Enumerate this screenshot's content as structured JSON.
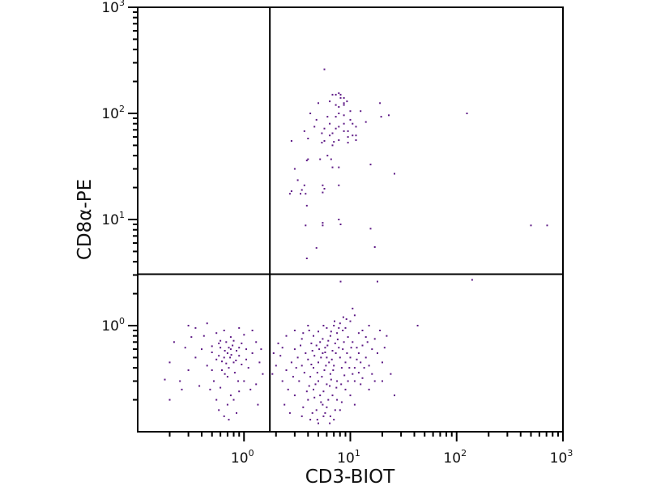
{
  "chart_data": {
    "type": "scatter",
    "title": "",
    "xlabel": "CD3-BIOT",
    "ylabel": "CD8α-PE",
    "xscale": "log",
    "yscale": "log",
    "xlim": [
      0.1,
      1000
    ],
    "ylim": [
      0.1,
      1000
    ],
    "grid": false,
    "point_color": "#5e1a86",
    "quadrant_gates": {
      "x": 1.75,
      "y": 3.05
    },
    "x_ticks": [
      {
        "value": 1,
        "base": "10",
        "exp": "0"
      },
      {
        "value": 10,
        "base": "10",
        "exp": "1"
      },
      {
        "value": 100,
        "base": "10",
        "exp": "2"
      },
      {
        "value": 1000,
        "base": "10",
        "exp": "3"
      }
    ],
    "y_ticks": [
      {
        "value": 1,
        "base": "10",
        "exp": "0"
      },
      {
        "value": 10,
        "base": "10",
        "exp": "1"
      },
      {
        "value": 100,
        "base": "10",
        "exp": "2"
      },
      {
        "value": 1000,
        "base": "10",
        "exp": "3"
      }
    ],
    "points": [
      [
        5.7,
        260
      ],
      [
        6.8,
        150
      ],
      [
        7.3,
        150
      ],
      [
        7.8,
        155
      ],
      [
        8.1,
        150
      ],
      [
        8.1,
        140
      ],
      [
        8.7,
        140
      ],
      [
        9.3,
        130
      ],
      [
        6.4,
        130
      ],
      [
        8.7,
        125
      ],
      [
        5.0,
        125
      ],
      [
        7.3,
        120
      ],
      [
        7.8,
        115
      ],
      [
        8.7,
        120
      ],
      [
        19,
        125
      ],
      [
        4.2,
        100
      ],
      [
        10,
        105
      ],
      [
        12.5,
        105
      ],
      [
        7.8,
        100
      ],
      [
        6.1,
        93
      ],
      [
        7.3,
        93
      ],
      [
        8.7,
        96
      ],
      [
        10,
        87
      ],
      [
        4.8,
        87
      ],
      [
        19.5,
        93
      ],
      [
        23,
        96
      ],
      [
        14,
        83
      ],
      [
        6.4,
        80
      ],
      [
        8.7,
        80
      ],
      [
        10.5,
        80
      ],
      [
        4.6,
        75
      ],
      [
        5.7,
        72
      ],
      [
        7.3,
        72
      ],
      [
        7.8,
        75
      ],
      [
        8.7,
        68
      ],
      [
        9.5,
        68
      ],
      [
        11.3,
        75
      ],
      [
        3.7,
        68
      ],
      [
        5.4,
        65
      ],
      [
        6.8,
        65
      ],
      [
        6.4,
        62
      ],
      [
        10.5,
        62
      ],
      [
        11.3,
        62
      ],
      [
        4.0,
        58
      ],
      [
        9.5,
        60
      ],
      [
        7.8,
        56
      ],
      [
        11.3,
        56
      ],
      [
        2.8,
        55
      ],
      [
        5.7,
        55
      ],
      [
        5.4,
        53
      ],
      [
        7.0,
        54
      ],
      [
        9.5,
        53
      ],
      [
        6.8,
        50
      ],
      [
        6.1,
        40
      ],
      [
        4.0,
        37
      ],
      [
        3.9,
        36
      ],
      [
        5.2,
        37
      ],
      [
        6.6,
        37
      ],
      [
        15.5,
        33
      ],
      [
        6.8,
        31
      ],
      [
        7.8,
        31
      ],
      [
        3.0,
        30
      ],
      [
        26,
        27
      ],
      [
        3.2,
        23.5
      ],
      [
        3.7,
        21
      ],
      [
        5.5,
        21
      ],
      [
        7.8,
        21
      ],
      [
        5.7,
        19.5
      ],
      [
        3.5,
        19
      ],
      [
        2.8,
        18.5
      ],
      [
        2.7,
        17.5
      ],
      [
        3.4,
        17.5
      ],
      [
        3.8,
        17.5
      ],
      [
        5.5,
        18
      ],
      [
        3.9,
        13.5
      ],
      [
        7.8,
        10
      ],
      [
        3.8,
        8.8
      ],
      [
        5.5,
        9.3
      ],
      [
        5.5,
        8.8
      ],
      [
        8.1,
        9.0
      ],
      [
        15.5,
        8.2
      ],
      [
        4.8,
        5.4
      ],
      [
        17,
        5.5
      ],
      [
        3.9,
        4.3
      ],
      [
        125,
        100
      ],
      [
        500,
        8.8
      ],
      [
        710,
        8.8
      ],
      [
        8.1,
        2.6
      ],
      [
        18,
        2.6
      ],
      [
        140,
        2.7
      ],
      [
        0.7,
        0.55
      ],
      [
        0.75,
        0.6
      ],
      [
        0.65,
        0.5
      ],
      [
        0.8,
        0.45
      ],
      [
        0.6,
        0.62
      ],
      [
        0.72,
        0.4
      ],
      [
        0.85,
        0.58
      ],
      [
        0.68,
        0.7
      ],
      [
        0.55,
        0.48
      ],
      [
        0.9,
        0.52
      ],
      [
        0.78,
        0.65
      ],
      [
        0.62,
        0.38
      ],
      [
        0.7,
        0.33
      ],
      [
        0.95,
        0.43
      ],
      [
        0.5,
        0.56
      ],
      [
        0.58,
        0.68
      ],
      [
        0.82,
        0.36
      ],
      [
        0.74,
        0.5
      ],
      [
        0.66,
        0.58
      ],
      [
        1.05,
        0.6
      ],
      [
        0.45,
        0.42
      ],
      [
        0.4,
        0.6
      ],
      [
        0.52,
        0.3
      ],
      [
        0.88,
        0.3
      ],
      [
        1.1,
        0.4
      ],
      [
        1.2,
        0.55
      ],
      [
        0.35,
        0.5
      ],
      [
        0.3,
        0.38
      ],
      [
        0.28,
        0.62
      ],
      [
        0.6,
        0.26
      ],
      [
        0.75,
        0.22
      ],
      [
        0.7,
        0.18
      ],
      [
        0.8,
        0.2
      ],
      [
        0.85,
        0.15
      ],
      [
        0.65,
        0.14
      ],
      [
        0.9,
        0.24
      ],
      [
        0.55,
        0.2
      ],
      [
        0.48,
        0.25
      ],
      [
        0.38,
        0.27
      ],
      [
        0.25,
        0.3
      ],
      [
        0.42,
        0.8
      ],
      [
        0.55,
        0.85
      ],
      [
        0.65,
        0.9
      ],
      [
        0.35,
        0.95
      ],
      [
        0.75,
        0.78
      ],
      [
        1.0,
        0.82
      ],
      [
        0.9,
        0.95
      ],
      [
        0.3,
        1.0
      ],
      [
        0.45,
        1.05
      ],
      [
        1.3,
        0.7
      ],
      [
        1.4,
        0.45
      ],
      [
        1.5,
        0.35
      ],
      [
        1.3,
        0.28
      ],
      [
        1.45,
        0.6
      ],
      [
        1.2,
        0.9
      ],
      [
        0.22,
        0.7
      ],
      [
        0.2,
        0.45
      ],
      [
        0.18,
        0.31
      ],
      [
        0.2,
        0.2
      ],
      [
        0.26,
        0.25
      ],
      [
        0.95,
        0.68
      ],
      [
        0.6,
        0.72
      ],
      [
        0.68,
        0.44
      ],
      [
        0.72,
        0.62
      ],
      [
        0.58,
        0.52
      ],
      [
        0.8,
        0.72
      ],
      [
        0.5,
        0.38
      ],
      [
        0.62,
        0.46
      ],
      [
        0.76,
        0.53
      ],
      [
        0.84,
        0.47
      ],
      [
        1.15,
        0.25
      ],
      [
        1.0,
        0.3
      ],
      [
        0.58,
        0.16
      ],
      [
        0.72,
        0.13
      ],
      [
        1.35,
        0.18
      ],
      [
        0.32,
        0.78
      ],
      [
        0.5,
        0.64
      ],
      [
        0.9,
        0.62
      ],
      [
        0.66,
        0.35
      ],
      [
        1.05,
        0.48
      ],
      [
        5,
        0.45
      ],
      [
        6,
        0.5
      ],
      [
        4.5,
        0.4
      ],
      [
        7,
        0.42
      ],
      [
        5.5,
        0.55
      ],
      [
        4,
        0.48
      ],
      [
        8,
        0.5
      ],
      [
        6.5,
        0.35
      ],
      [
        3.5,
        0.42
      ],
      [
        9,
        0.45
      ],
      [
        5,
        0.3
      ],
      [
        6,
        0.28
      ],
      [
        4.2,
        0.33
      ],
      [
        7.5,
        0.3
      ],
      [
        3.8,
        0.55
      ],
      [
        8.5,
        0.6
      ],
      [
        5.8,
        0.62
      ],
      [
        4.8,
        0.65
      ],
      [
        7.2,
        0.68
      ],
      [
        10,
        0.5
      ],
      [
        11,
        0.4
      ],
      [
        12,
        0.55
      ],
      [
        10.5,
        0.35
      ],
      [
        3.2,
        0.5
      ],
      [
        2.8,
        0.45
      ],
      [
        2.5,
        0.38
      ],
      [
        3,
        0.6
      ],
      [
        2.2,
        0.52
      ],
      [
        2,
        0.42
      ],
      [
        2.3,
        0.3
      ],
      [
        4.5,
        0.25
      ],
      [
        5.2,
        0.22
      ],
      [
        6.2,
        0.2
      ],
      [
        4,
        0.2
      ],
      [
        5.5,
        0.18
      ],
      [
        6.8,
        0.22
      ],
      [
        7.5,
        0.2
      ],
      [
        4.8,
        0.16
      ],
      [
        5.8,
        0.15
      ],
      [
        6.5,
        0.14
      ],
      [
        4.2,
        0.13
      ],
      [
        5,
        0.12
      ],
      [
        7,
        0.13
      ],
      [
        8,
        0.16
      ],
      [
        3.6,
        0.17
      ],
      [
        3,
        0.22
      ],
      [
        2.6,
        0.25
      ],
      [
        9,
        0.25
      ],
      [
        10,
        0.22
      ],
      [
        11,
        0.18
      ],
      [
        5.5,
        0.75
      ],
      [
        6.5,
        0.8
      ],
      [
        7.5,
        0.85
      ],
      [
        4.5,
        0.8
      ],
      [
        8.5,
        0.9
      ],
      [
        9.5,
        0.78
      ],
      [
        10.5,
        0.7
      ],
      [
        6,
        0.95
      ],
      [
        7,
        1.0
      ],
      [
        8,
        1.05
      ],
      [
        9,
        0.95
      ],
      [
        10,
        1.1
      ],
      [
        11,
        1.25
      ],
      [
        10.5,
        1.45
      ],
      [
        5,
        0.88
      ],
      [
        3.5,
        0.75
      ],
      [
        2.5,
        0.8
      ],
      [
        3,
        0.9
      ],
      [
        4,
        1.0
      ],
      [
        12,
        0.85
      ],
      [
        13,
        0.65
      ],
      [
        14,
        0.5
      ],
      [
        15,
        0.42
      ],
      [
        13,
        0.32
      ],
      [
        16,
        0.6
      ],
      [
        14,
        0.78
      ],
      [
        18,
        0.55
      ],
      [
        20,
        0.45
      ],
      [
        22,
        0.8
      ],
      [
        24,
        0.35
      ],
      [
        17,
        0.3
      ],
      [
        15,
        0.25
      ],
      [
        19,
        0.9
      ],
      [
        12.5,
        0.28
      ],
      [
        11.5,
        0.62
      ],
      [
        2.1,
        0.68
      ],
      [
        1.9,
        0.55
      ],
      [
        1.85,
        0.35
      ],
      [
        2.4,
        0.18
      ],
      [
        2.7,
        0.15
      ],
      [
        5.3,
        0.5
      ],
      [
        6.3,
        0.45
      ],
      [
        4.6,
        0.52
      ],
      [
        7.3,
        0.55
      ],
      [
        5.7,
        0.38
      ],
      [
        4.3,
        0.43
      ],
      [
        8.3,
        0.4
      ],
      [
        6.7,
        0.48
      ],
      [
        3.7,
        0.36
      ],
      [
        9.3,
        0.55
      ],
      [
        5.1,
        0.6
      ],
      [
        6.1,
        0.65
      ],
      [
        4.4,
        0.58
      ],
      [
        7.8,
        0.62
      ],
      [
        5.9,
        0.42
      ],
      [
        4.9,
        0.36
      ],
      [
        6.9,
        0.38
      ],
      [
        8.8,
        0.34
      ],
      [
        3.3,
        0.3
      ],
      [
        9.8,
        0.4
      ],
      [
        5.4,
        0.33
      ],
      [
        6.4,
        0.27
      ],
      [
        4.7,
        0.28
      ],
      [
        7.4,
        0.26
      ],
      [
        5.6,
        0.24
      ],
      [
        4.1,
        0.27
      ],
      [
        8.2,
        0.28
      ],
      [
        6.6,
        0.31
      ],
      [
        3.9,
        0.24
      ],
      [
        9.5,
        0.3
      ],
      [
        5.2,
        0.7
      ],
      [
        6.2,
        0.72
      ],
      [
        4.3,
        0.68
      ],
      [
        7.6,
        0.74
      ],
      [
        5.8,
        0.56
      ],
      [
        3.4,
        0.65
      ],
      [
        8.7,
        0.7
      ],
      [
        6.8,
        0.58
      ],
      [
        3.1,
        0.4
      ],
      [
        10.2,
        0.62
      ],
      [
        4.6,
        0.21
      ],
      [
        5.3,
        0.19
      ],
      [
        6,
        0.17
      ],
      [
        4.4,
        0.15
      ],
      [
        5.6,
        0.14
      ],
      [
        6.4,
        0.12
      ],
      [
        7.2,
        0.16
      ],
      [
        8.3,
        0.19
      ],
      [
        3.5,
        0.14
      ],
      [
        4.9,
        0.13
      ],
      [
        11.5,
        0.48
      ],
      [
        12.5,
        0.45
      ],
      [
        13.5,
        0.4
      ],
      [
        11,
        0.3
      ],
      [
        12,
        0.36
      ],
      [
        14.5,
        0.7
      ],
      [
        16,
        0.35
      ],
      [
        17,
        0.75
      ],
      [
        13,
        0.9
      ],
      [
        15,
        1.0
      ],
      [
        2.9,
        0.33
      ],
      [
        2.3,
        0.62
      ],
      [
        3.6,
        0.85
      ],
      [
        4.1,
        0.9
      ],
      [
        6.6,
        0.88
      ],
      [
        7.8,
        0.95
      ],
      [
        9.2,
        1.15
      ],
      [
        8.6,
        1.2
      ],
      [
        7.1,
        1.1
      ],
      [
        5.6,
        1.0
      ],
      [
        43,
        1.0
      ],
      [
        26,
        0.22
      ],
      [
        20,
        0.3
      ],
      [
        21,
        0.62
      ]
    ]
  }
}
